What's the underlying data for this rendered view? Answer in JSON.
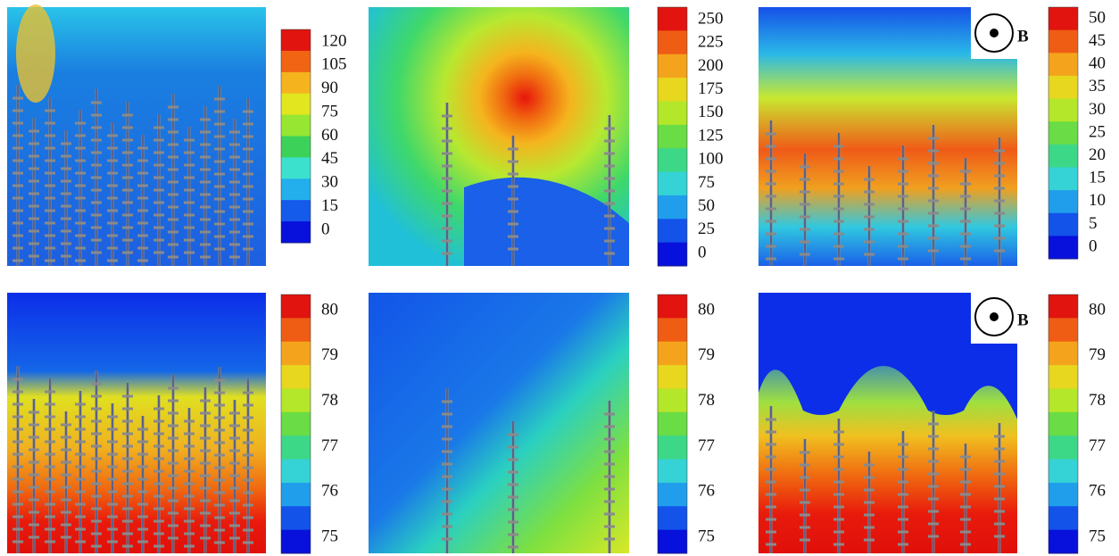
{
  "panels": [
    {
      "colorbar": {
        "ticks": [
          120,
          105,
          90,
          75,
          60,
          45,
          30,
          15,
          0
        ]
      }
    },
    {
      "colorbar": {
        "ticks": [
          250,
          225,
          200,
          175,
          150,
          125,
          100,
          75,
          50,
          25,
          0
        ]
      }
    },
    {
      "colorbar": {
        "ticks": [
          50,
          45,
          40,
          35,
          30,
          25,
          20,
          15,
          10,
          5,
          0
        ]
      },
      "field_label": "B"
    },
    {
      "colorbar": {
        "ticks": [
          80,
          79,
          78,
          77,
          76,
          75
        ]
      }
    },
    {
      "colorbar": {
        "ticks": [
          80,
          79,
          78,
          77,
          76,
          75
        ]
      }
    },
    {
      "colorbar": {
        "ticks": [
          80,
          79,
          78,
          77,
          76,
          75
        ]
      },
      "field_label": "B"
    }
  ]
}
